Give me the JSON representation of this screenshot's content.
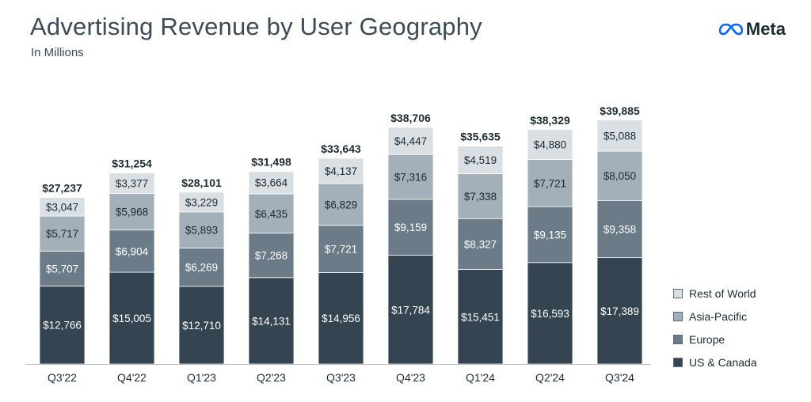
{
  "header": {
    "title": "Advertising Revenue by User Geography",
    "subtitle": "In Millions",
    "logo_text": "Meta"
  },
  "colors": {
    "us_canada": "#344451",
    "europe": "#6b7b88",
    "asia_pacific": "#a3afb9",
    "rest_of_world": "#dadfe3",
    "text_dark": "#1c2b33",
    "axis": "#b8c0c6"
  },
  "chart_data": {
    "type": "bar",
    "stacked": true,
    "title": "Advertising Revenue by User Geography",
    "subtitle": "In Millions",
    "categories": [
      "Q3'22",
      "Q4'22",
      "Q1'23",
      "Q2'23",
      "Q3'23",
      "Q4'23",
      "Q1'24",
      "Q2'24",
      "Q3'24"
    ],
    "series": [
      {
        "name": "US & Canada",
        "color": "#344451",
        "labels": [
          "$12,766",
          "$15,005",
          "$12,710",
          "$14,131",
          "$14,956",
          "$17,784",
          "$15,451",
          "$16,593",
          "$17,389"
        ],
        "values": [
          12766,
          15005,
          12710,
          14131,
          14956,
          17784,
          15451,
          16593,
          17389
        ]
      },
      {
        "name": "Europe",
        "color": "#6b7b88",
        "labels": [
          "$5,707",
          "$6,904",
          "$6,269",
          "$7,268",
          "$7,721",
          "$9,159",
          "$8,327",
          "$9,135",
          "$9,358"
        ],
        "values": [
          5707,
          6904,
          6269,
          7268,
          7721,
          9159,
          8327,
          9135,
          9358
        ]
      },
      {
        "name": "Asia-Pacific",
        "color": "#a3afb9",
        "labels": [
          "$5,717",
          "$5,968",
          "$5,893",
          "$6,435",
          "$6,829",
          "$7,316",
          "$7,338",
          "$7,721",
          "$8,050"
        ],
        "values": [
          5717,
          5968,
          5893,
          6435,
          6829,
          7316,
          7338,
          7721,
          8050
        ]
      },
      {
        "name": "Rest of World",
        "color": "#dadfe3",
        "labels": [
          "$3,047",
          "$3,377",
          "$3,229",
          "$3,664",
          "$4,137",
          "$4,447",
          "$4,519",
          "$4,880",
          "$5,088"
        ],
        "values": [
          3047,
          3377,
          3229,
          3664,
          4137,
          4447,
          4519,
          4880,
          5088
        ]
      }
    ],
    "total_labels": [
      "$27,237",
      "$31,254",
      "$28,101",
      "$31,498",
      "$33,643",
      "$38,706",
      "$35,635",
      "$38,329",
      "$39,885"
    ],
    "totals": [
      27237,
      31254,
      28101,
      31498,
      33643,
      38706,
      35635,
      38329,
      39885
    ],
    "legend": [
      "Rest of World",
      "Asia-Pacific",
      "Europe",
      "US & Canada"
    ],
    "legend_position": "right",
    "grid": false,
    "ylim": [
      0,
      40500
    ]
  }
}
